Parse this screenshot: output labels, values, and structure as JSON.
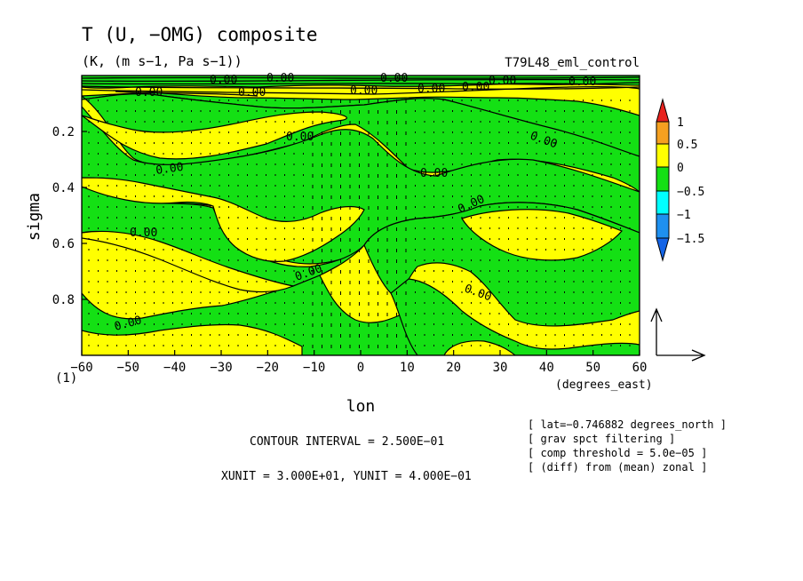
{
  "chart_data": {
    "type": "heatmap",
    "title": "T (U, −OMG) composite",
    "subtitle": "(K, (m s−1, Pa s−1))",
    "run_label": "T79L48_eml_control",
    "xlabel": "lon",
    "x_unit_label": "(degrees_east)",
    "ylabel": "sigma",
    "y_bottom_label": "(1)",
    "xlim": [
      -60,
      60
    ],
    "ylim": [
      1.0,
      0.0
    ],
    "x_ticks": [
      -60,
      -50,
      -40,
      -30,
      -20,
      -10,
      0,
      10,
      20,
      30,
      40,
      50,
      60
    ],
    "x_tick_labels": [
      "−60",
      "−50",
      "−40",
      "−30",
      "−20",
      "−10",
      "0",
      "10",
      "20",
      "30",
      "40",
      "50",
      "60"
    ],
    "y_ticks": [
      0.2,
      0.4,
      0.6,
      0.8
    ],
    "y_tick_labels": [
      "0.2",
      "0.4",
      "0.6",
      "0.8"
    ],
    "colorbar": {
      "levels": [
        1,
        0.5,
        0,
        -0.5,
        -1,
        -1.5
      ],
      "labels": [
        "1",
        "0.5",
        "0",
        "−0.5",
        "−1",
        "−1.5"
      ],
      "colors": [
        "#e8231e",
        "#f5a020",
        "#ffff00",
        "#14e014",
        "#00ffff",
        "#1e90f0",
        "#1464e6"
      ]
    },
    "contour_label": "0.00",
    "contour_interval_text": "CONTOUR INTERVAL = 2.500E−01",
    "unit_vector_text": "XUNIT = 3.000E+01, YUNIT = 4.000E−01",
    "grid": false
  },
  "info_lines": [
    "[ lat=−0.746882 degrees_north ]",
    "[ grav spct filtering ]",
    "[ comp threshold = 5.0e−05 ]",
    "[ (diff) from (mean) zonal ]"
  ],
  "colors": {
    "field_zero_positive": "#ffff00",
    "field_negative": "#14e014",
    "axis": "#000000"
  }
}
